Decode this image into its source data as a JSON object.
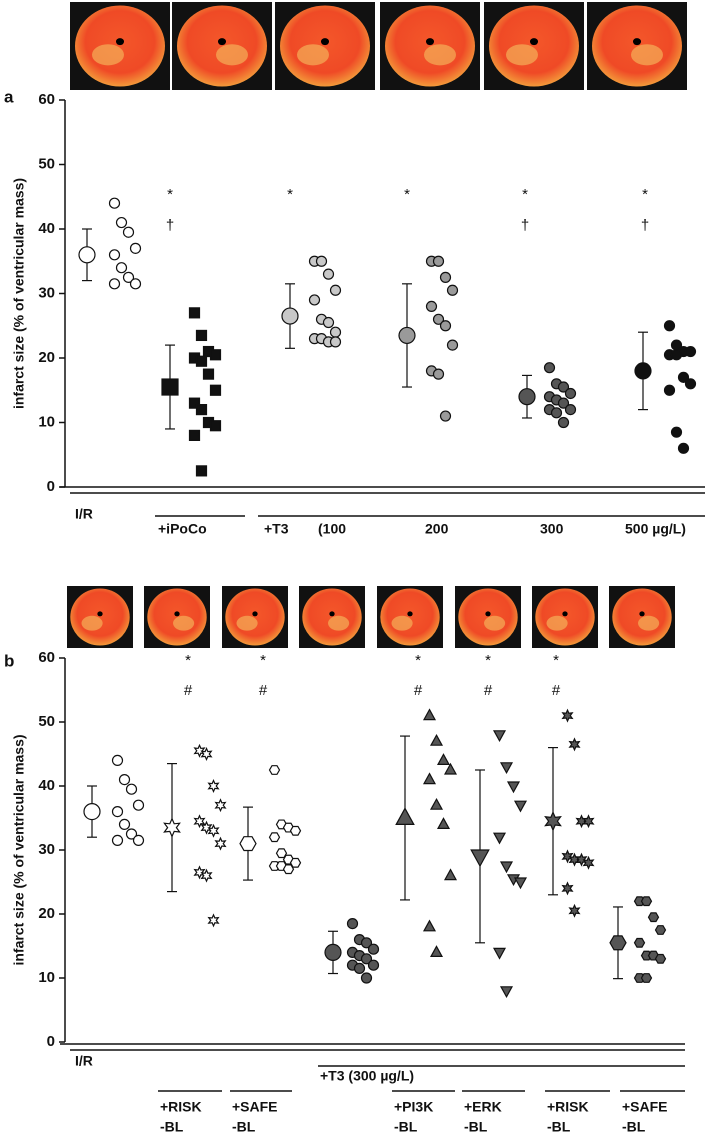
{
  "chart_data": [
    {
      "type": "dot",
      "panel": "a",
      "ylabel": "infarct size (% of ventricular mass)",
      "ylim": [
        0,
        60
      ],
      "yticks": [
        0,
        10,
        20,
        30,
        40,
        50,
        60
      ],
      "groups": [
        {
          "mean": 36,
          "error": 4,
          "marker": "circle",
          "color": "#ffffff",
          "annotations": [],
          "points": [
            44,
            41,
            39.5,
            37,
            36,
            34,
            32.5,
            31.5,
            31.5
          ]
        },
        {
          "mean": 15.5,
          "error": 6.5,
          "marker": "square",
          "color": "#111111",
          "annotations": [
            "*",
            "†"
          ],
          "points": [
            27,
            23.5,
            21,
            20.5,
            20,
            19.5,
            17.5,
            15,
            13,
            12,
            10,
            9.5,
            8,
            2.5
          ]
        },
        {
          "mean": 26.5,
          "error": 5,
          "marker": "circle",
          "color": "#c8c8c8",
          "annotations": [
            "*"
          ],
          "points": [
            35,
            35,
            33,
            30.5,
            29,
            26,
            25.5,
            24,
            23,
            23,
            22.5,
            22.5
          ]
        },
        {
          "mean": 23.5,
          "error": 8,
          "marker": "circle",
          "color": "#9a9a9a",
          "annotations": [
            "*"
          ],
          "points": [
            35,
            35,
            32.5,
            30.5,
            28,
            26,
            25,
            22,
            18,
            17.5,
            11
          ]
        },
        {
          "mean": 14,
          "error": 3.3,
          "marker": "circle",
          "color": "#555555",
          "annotations": [
            "*",
            "†"
          ],
          "points": [
            18.5,
            16,
            15.5,
            14.5,
            14,
            13.5,
            13,
            12,
            12,
            11.5,
            10
          ]
        },
        {
          "mean": 18,
          "error": 6,
          "marker": "circle",
          "color": "#111111",
          "annotations": [
            "*",
            "†"
          ],
          "points": [
            25,
            22,
            21,
            21,
            20.5,
            20.5,
            17,
            16,
            15,
            8.5,
            6
          ]
        }
      ],
      "x_labels": [
        [
          "I/R"
        ],
        [
          "+iPoCo"
        ],
        [
          "+T3"
        ],
        [
          "(100"
        ],
        [
          "200"
        ],
        [
          "300"
        ],
        [
          "500 µg/L)"
        ]
      ]
    },
    {
      "type": "dot",
      "panel": "b",
      "ylabel": "infarct size (% of ventricular mass)",
      "ylim": [
        0,
        60
      ],
      "yticks": [
        0,
        10,
        20,
        30,
        40,
        50,
        60
      ],
      "groups": [
        {
          "mean": 36,
          "error": 4,
          "marker": "circle",
          "color": "#ffffff",
          "annotations": [],
          "points": [
            44,
            41,
            39.5,
            37,
            36,
            34,
            32.5,
            31.5,
            31.5
          ]
        },
        {
          "mean": 33.5,
          "error": 10,
          "marker": "star",
          "color": "#ffffff",
          "annotations": [
            "*",
            "#"
          ],
          "points": [
            45.5,
            45,
            40,
            37,
            34.5,
            33.5,
            33,
            31,
            26.5,
            26,
            19
          ]
        },
        {
          "mean": 31,
          "error": 5.7,
          "marker": "hexagon",
          "color": "#ffffff",
          "annotations": [
            "*",
            "#"
          ],
          "points": [
            42.5,
            34,
            33.5,
            33,
            32,
            29.5,
            28.5,
            28,
            27.5,
            27.5,
            27
          ]
        },
        {
          "mean": 14,
          "error": 3.3,
          "marker": "circle",
          "color": "#555555",
          "annotations": [],
          "points": [
            18.5,
            16,
            15.5,
            14.5,
            14,
            13.5,
            13,
            12,
            12,
            11.5,
            10
          ]
        },
        {
          "mean": 35,
          "error": 12.8,
          "marker": "triangle-up",
          "color": "#555555",
          "annotations": [
            "*",
            "#"
          ],
          "points": [
            51,
            47,
            44,
            42.5,
            41,
            37,
            34,
            26,
            18,
            14
          ]
        },
        {
          "mean": 29,
          "error": 13.5,
          "marker": "triangle-down",
          "color": "#555555",
          "annotations": [
            "*",
            "#"
          ],
          "points": [
            48,
            43,
            40,
            37,
            32,
            27.5,
            25.5,
            25,
            14,
            8
          ]
        },
        {
          "mean": 34.5,
          "error": 11.5,
          "marker": "star",
          "color": "#555555",
          "annotations": [
            "*",
            "#"
          ],
          "points": [
            51,
            46.5,
            34.5,
            34.5,
            29,
            28.5,
            28.5,
            28,
            24,
            20.5
          ]
        },
        {
          "mean": 15.5,
          "error": 5.6,
          "marker": "hexagon",
          "color": "#555555",
          "annotations": [],
          "points": [
            22,
            22,
            19.5,
            17.5,
            15.5,
            13.5,
            13.5,
            13,
            10,
            10
          ]
        }
      ],
      "x_labels": [
        [
          "I/R"
        ],
        [
          "+T3 (300 µg/L)"
        ],
        [
          "+RISK",
          "-BL"
        ],
        [
          "+SAFE",
          "-BL"
        ],
        [
          "+PI3K",
          "-BL"
        ],
        [
          "+ERK",
          "-BL"
        ],
        [
          "+RISK",
          "-BL"
        ],
        [
          "+SAFE",
          "-BL"
        ]
      ]
    }
  ]
}
